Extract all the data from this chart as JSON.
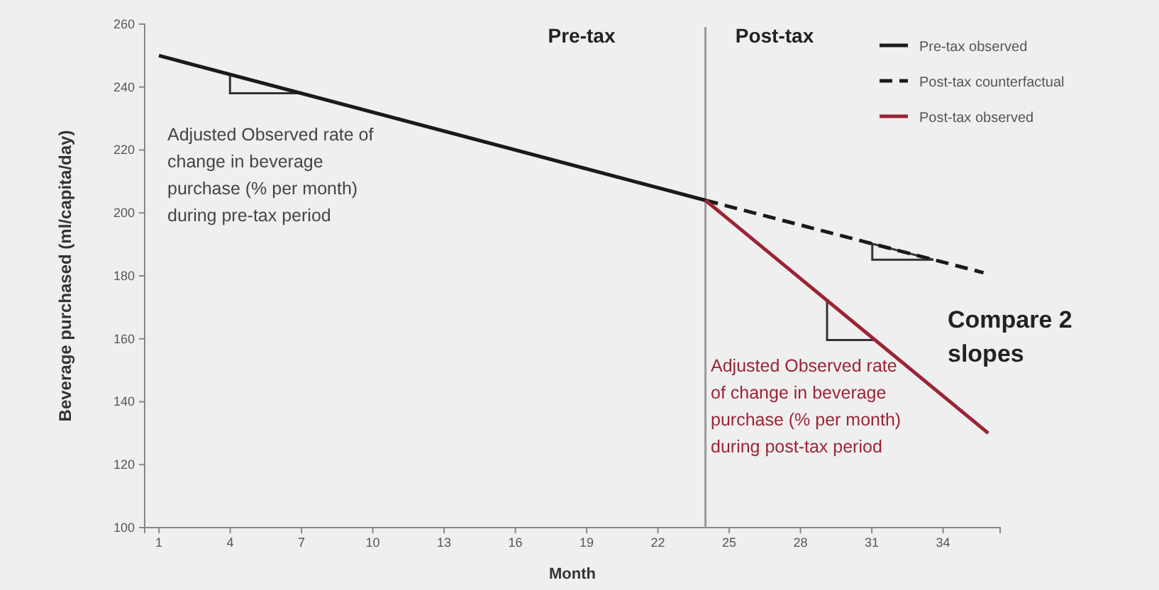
{
  "chart_data": {
    "type": "line",
    "xlabel": "Month",
    "ylabel": "Beverage purchased (ml/capita/day)",
    "xlim": [
      0.4,
      36.4
    ],
    "xticks": [
      1,
      4,
      7,
      10,
      13,
      16,
      19,
      22,
      25,
      28,
      31,
      34
    ],
    "ylim": [
      100,
      260
    ],
    "yticks": [
      100,
      120,
      140,
      160,
      180,
      200,
      220,
      240,
      260
    ],
    "legend": "top right",
    "grid": false,
    "series": [
      {
        "name": "Pre-tax observed",
        "color": "#1a1a1a",
        "x": [
          1,
          24
        ],
        "values": [
          250,
          204
        ],
        "line_style": "solid"
      },
      {
        "name": "Post-tax counterfactual",
        "color": "#1a1a1a",
        "x": [
          24,
          35.7
        ],
        "values": [
          204,
          181
        ],
        "line_style": "dashed"
      },
      {
        "name": "Post-tax observed",
        "color": "#9b2335",
        "x": [
          24,
          35.9
        ],
        "values": [
          204,
          130
        ],
        "line_style": "solid"
      }
    ],
    "ref_lines": [
      {
        "axis": "x",
        "value": 24,
        "color": "#999999",
        "line_style": "solid"
      }
    ],
    "annotations": [
      "Pre-tax",
      "Post-tax",
      "Adjusted Observed rate of change in beverage purchase (% per month) during pre-tax period",
      "Adjusted Observed rate of change in beverage purchase (% per month) during post-tax period",
      "Compare 2 slopes"
    ]
  }
}
